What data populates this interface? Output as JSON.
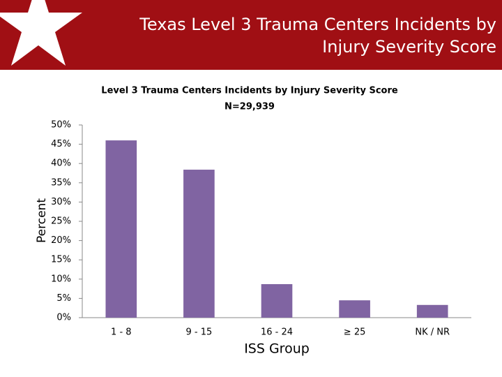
{
  "slide": {
    "title_lines": [
      "Texas Level 3 Trauma Centers Incidents by",
      "Injury Severity Score"
    ]
  },
  "chart_data": {
    "type": "bar",
    "title": "Level 3 Trauma Centers Incidents by Injury Severity Score",
    "subtitle": "N=29,939",
    "x_label": "ISS Group",
    "y_label": "Percent",
    "categories": [
      "1 - 8",
      "9 - 15",
      "16 - 24",
      "≥ 25",
      "NK / NR"
    ],
    "values": [
      46.0,
      38.4,
      8.7,
      4.5,
      3.3
    ],
    "color": "#8064a2",
    "ylim": [
      0,
      50
    ],
    "yticks": [
      {
        "value": 0,
        "label": "0%"
      },
      {
        "value": 5,
        "label": "5%"
      },
      {
        "value": 10,
        "label": "10%"
      },
      {
        "value": 15,
        "label": "15%"
      },
      {
        "value": 20,
        "label": "20%"
      },
      {
        "value": 25,
        "label": "25%"
      },
      {
        "value": 30,
        "label": "30%"
      },
      {
        "value": 35,
        "label": "35%"
      },
      {
        "value": 40,
        "label": "40%"
      },
      {
        "value": 45,
        "label": "45%"
      },
      {
        "value": 50,
        "label": "50%"
      }
    ],
    "grid": false
  }
}
